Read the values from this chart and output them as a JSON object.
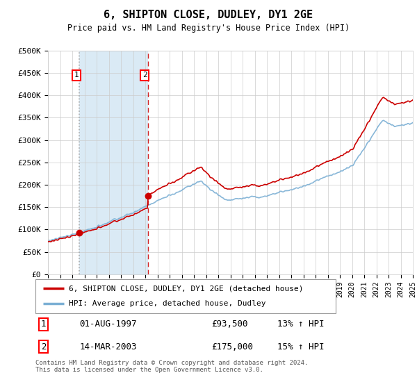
{
  "title": "6, SHIPTON CLOSE, DUDLEY, DY1 2GE",
  "subtitle": "Price paid vs. HM Land Registry's House Price Index (HPI)",
  "legend_line1": "6, SHIPTON CLOSE, DUDLEY, DY1 2GE (detached house)",
  "legend_line2": "HPI: Average price, detached house, Dudley",
  "transaction1_label": "1",
  "transaction1_date": "01-AUG-1997",
  "transaction1_price": "£93,500",
  "transaction1_hpi": "13% ↑ HPI",
  "transaction1_x": 1997.58,
  "transaction1_y": 93500,
  "transaction2_label": "2",
  "transaction2_date": "14-MAR-2003",
  "transaction2_price": "£175,000",
  "transaction2_hpi": "15% ↑ HPI",
  "transaction2_x": 2003.2,
  "transaction2_y": 175000,
  "footnote": "Contains HM Land Registry data © Crown copyright and database right 2024.\nThis data is licensed under the Open Government Licence v3.0.",
  "xmin": 1995,
  "xmax": 2025,
  "ymin": 0,
  "ymax": 500000,
  "yticks": [
    0,
    50000,
    100000,
    150000,
    200000,
    250000,
    300000,
    350000,
    400000,
    450000,
    500000
  ],
  "hpi_color": "#7bafd4",
  "price_color": "#cc0000",
  "shade_color": "#daeaf5",
  "background_color": "#ffffff",
  "grid_color": "#cccccc"
}
